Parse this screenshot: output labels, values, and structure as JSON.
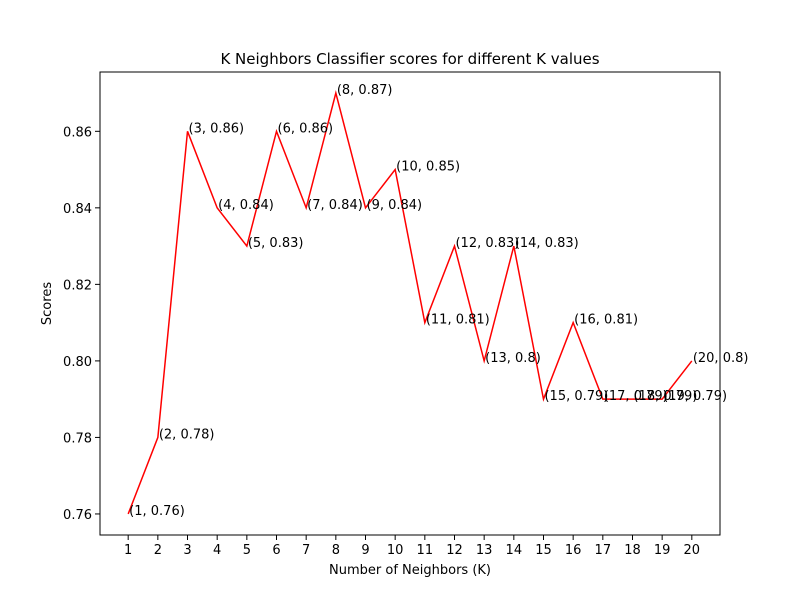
{
  "chart_data": {
    "type": "line",
    "title": "K Neighbors Classifier scores for different K values",
    "xlabel": "Number of Neighbors (K)",
    "ylabel": "Scores",
    "x": [
      1,
      2,
      3,
      4,
      5,
      6,
      7,
      8,
      9,
      10,
      11,
      12,
      13,
      14,
      15,
      16,
      17,
      18,
      19,
      20
    ],
    "y": [
      0.76,
      0.78,
      0.86,
      0.84,
      0.83,
      0.86,
      0.84,
      0.87,
      0.84,
      0.85,
      0.81,
      0.83,
      0.8,
      0.83,
      0.79,
      0.81,
      0.79,
      0.79,
      0.79,
      0.8
    ],
    "point_labels": [
      "(1, 0.76)",
      "(2, 0.78)",
      "(3, 0.86)",
      "(4, 0.84)",
      "(5, 0.83)",
      "(6, 0.86)",
      "(7, 0.84)",
      "(8, 0.87)",
      "(9, 0.84)",
      "(10, 0.85)",
      "(11, 0.81)",
      "(12, 0.83)",
      "(13, 0.8)",
      "(14, 0.83)",
      "(15, 0.79)",
      "(16, 0.81)",
      "(17, 0.79)",
      "(18, 0.79)",
      "(19, 0.79)",
      "(20, 0.8)"
    ],
    "xticks": [
      1,
      2,
      3,
      4,
      5,
      6,
      7,
      8,
      9,
      10,
      11,
      12,
      13,
      14,
      15,
      16,
      17,
      18,
      19,
      20
    ],
    "yticks": [
      "0.76",
      "0.78",
      "0.80",
      "0.82",
      "0.84",
      "0.86"
    ],
    "xlim": [
      0.05,
      20.95
    ],
    "ylim": [
      0.7545,
      0.8755
    ],
    "line_color": "#ff0000",
    "grid": false,
    "legend": "none"
  }
}
